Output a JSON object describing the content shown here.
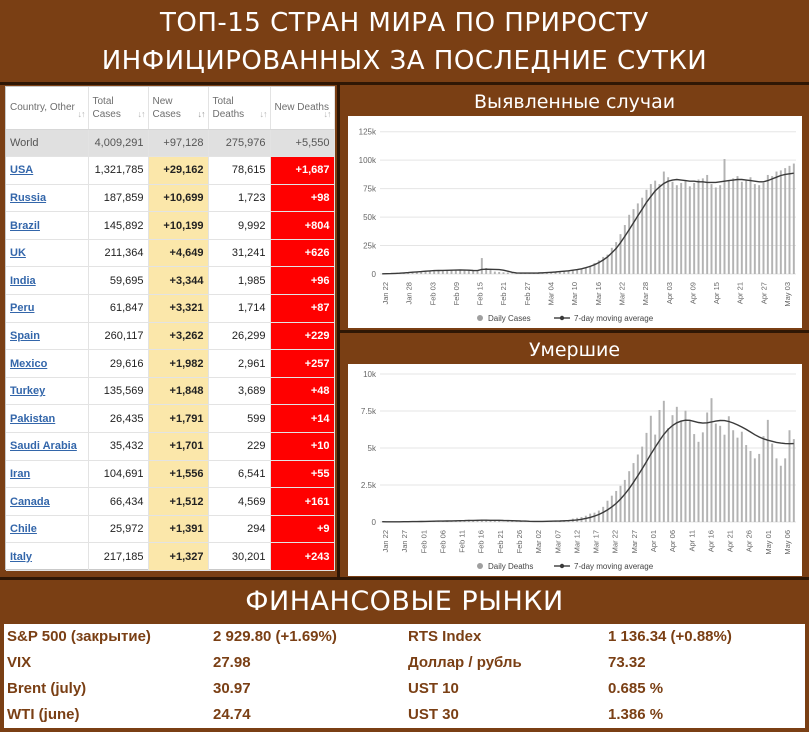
{
  "header": {
    "line1": "ТОП-15 СТРАН МИРА ПО ПРИРОСТУ",
    "line2": "ИНФИЦИРОВАННЫХ ЗА ПОСЛЕДНИЕ СУТКИ"
  },
  "table": {
    "headers": [
      "Country, Other",
      "Total Cases",
      "New Cases",
      "Total Deaths",
      "New Deaths"
    ],
    "world": {
      "country": "World",
      "total_cases": "4,009,291",
      "new_cases": "+97,128",
      "total_deaths": "275,976",
      "new_deaths": "+5,550"
    },
    "rows": [
      {
        "country": "USA",
        "total_cases": "1,321,785",
        "new_cases": "+29,162",
        "total_deaths": "78,615",
        "new_deaths": "+1,687"
      },
      {
        "country": "Russia",
        "total_cases": "187,859",
        "new_cases": "+10,699",
        "total_deaths": "1,723",
        "new_deaths": "+98"
      },
      {
        "country": "Brazil",
        "total_cases": "145,892",
        "new_cases": "+10,199",
        "total_deaths": "9,992",
        "new_deaths": "+804"
      },
      {
        "country": "UK",
        "total_cases": "211,364",
        "new_cases": "+4,649",
        "total_deaths": "31,241",
        "new_deaths": "+626"
      },
      {
        "country": "India",
        "total_cases": "59,695",
        "new_cases": "+3,344",
        "total_deaths": "1,985",
        "new_deaths": "+96"
      },
      {
        "country": "Peru",
        "total_cases": "61,847",
        "new_cases": "+3,321",
        "total_deaths": "1,714",
        "new_deaths": "+87"
      },
      {
        "country": "Spain",
        "total_cases": "260,117",
        "new_cases": "+3,262",
        "total_deaths": "26,299",
        "new_deaths": "+229"
      },
      {
        "country": "Mexico",
        "total_cases": "29,616",
        "new_cases": "+1,982",
        "total_deaths": "2,961",
        "new_deaths": "+257"
      },
      {
        "country": "Turkey",
        "total_cases": "135,569",
        "new_cases": "+1,848",
        "total_deaths": "3,689",
        "new_deaths": "+48"
      },
      {
        "country": "Pakistan",
        "total_cases": "26,435",
        "new_cases": "+1,791",
        "total_deaths": "599",
        "new_deaths": "+14"
      },
      {
        "country": "Saudi Arabia",
        "total_cases": "35,432",
        "new_cases": "+1,701",
        "total_deaths": "229",
        "new_deaths": "+10"
      },
      {
        "country": "Iran",
        "total_cases": "104,691",
        "new_cases": "+1,556",
        "total_deaths": "6,541",
        "new_deaths": "+55"
      },
      {
        "country": "Canada",
        "total_cases": "66,434",
        "new_cases": "+1,512",
        "total_deaths": "4,569",
        "new_deaths": "+161"
      },
      {
        "country": "Chile",
        "total_cases": "25,972",
        "new_cases": "+1,391",
        "total_deaths": "294",
        "new_deaths": "+9"
      },
      {
        "country": "Italy",
        "total_cases": "217,185",
        "new_cases": "+1,327",
        "total_deaths": "30,201",
        "new_deaths": "+243"
      }
    ]
  },
  "chart_data": [
    {
      "type": "bar",
      "title": "Выявленные случаи",
      "ylim": [
        0,
        130000
      ],
      "yticks": [
        0,
        25000,
        50000,
        75000,
        100000,
        125000
      ],
      "ytick_labels": [
        "0",
        "25k",
        "50k",
        "75k",
        "100k",
        "125k"
      ],
      "x_tick_labels": [
        "Jan 22",
        "Jan 28",
        "Feb 03",
        "Feb 09",
        "Feb 15",
        "Feb 21",
        "Feb 27",
        "Mar 04",
        "Mar 10",
        "Mar 16",
        "Mar 22",
        "Mar 28",
        "Apr 03",
        "Apr 09",
        "Apr 15",
        "Apr 21",
        "Apr 27",
        "May 03"
      ],
      "legend": [
        "Daily Cases",
        "7-day moving average"
      ],
      "legend_position": "bottom",
      "series": [
        {
          "name": "Daily Cases",
          "values": [
            100,
            200,
            300,
            500,
            700,
            900,
            1200,
            1500,
            1800,
            2100,
            2400,
            2700,
            3000,
            3100,
            3200,
            3100,
            3400,
            3600,
            3700,
            3300,
            3000,
            2600,
            2500,
            14000,
            5200,
            4200,
            2100,
            1800,
            1500,
            1300,
            600,
            400,
            600,
            900,
            700,
            800,
            900,
            1100,
            1300,
            1800,
            2100,
            2300,
            2600,
            2800,
            3500,
            4000,
            4600,
            5600,
            7300,
            9700,
            12000,
            15000,
            17000,
            23000,
            28000,
            35000,
            43000,
            52000,
            57000,
            62000,
            67000,
            74000,
            79000,
            82000,
            79000,
            90000,
            85000,
            81000,
            78000,
            80000,
            82000,
            77000,
            80000,
            83000,
            84000,
            87000,
            79000,
            76000,
            78000,
            101000,
            82000,
            84000,
            86000,
            81000,
            82000,
            85000,
            79000,
            78000,
            80000,
            87000,
            86000,
            90000,
            91000,
            93000,
            95000,
            97000
          ]
        },
        {
          "name": "7-day moving average",
          "values": [
            150,
            220,
            340,
            520,
            730,
            950,
            1250,
            1550,
            1850,
            2150,
            2450,
            2750,
            2950,
            3100,
            3200,
            3250,
            3350,
            3450,
            3500,
            3450,
            3300,
            3100,
            3000,
            4000,
            4200,
            4100,
            4000,
            3900,
            3300,
            2500,
            1500,
            1000,
            800,
            750,
            760,
            800,
            900,
            1050,
            1250,
            1500,
            1800,
            2100,
            2450,
            2850,
            3300,
            3900,
            4600,
            5500,
            6700,
            8200,
            10000,
            12300,
            15000,
            18500,
            22500,
            27500,
            33000,
            39000,
            45000,
            51000,
            57000,
            63000,
            68000,
            73000,
            76500,
            79500,
            81500,
            82500,
            83000,
            82500,
            82000,
            81500,
            81500,
            81000,
            81000,
            80500,
            80500,
            80500,
            81000,
            81500,
            82000,
            82500,
            83000,
            83000,
            82500,
            82000,
            81500,
            81000,
            81000,
            82000,
            83500,
            85000,
            86500,
            87500,
            88000,
            88500
          ]
        }
      ]
    },
    {
      "type": "bar",
      "title": "Умершие",
      "ylim": [
        0,
        10000
      ],
      "yticks": [
        0,
        2500,
        5000,
        7500,
        10000
      ],
      "ytick_labels": [
        "0",
        "2.5k",
        "5k",
        "7.5k",
        "10k"
      ],
      "x_tick_labels": [
        "Jan 22",
        "Jan 27",
        "Feb 01",
        "Feb 06",
        "Feb 11",
        "Feb 16",
        "Feb 21",
        "Feb 26",
        "Mar 02",
        "Mar 07",
        "Mar 12",
        "Mar 17",
        "Mar 22",
        "Mar 27",
        "Apr 01",
        "Apr 06",
        "Apr 11",
        "Apr 16",
        "Apr 21",
        "Apr 26",
        "May 01",
        "May 06"
      ],
      "legend": [
        "Daily Deaths",
        "7-day moving average"
      ],
      "legend_position": "bottom",
      "series": [
        {
          "name": "Daily Deaths",
          "values": [
            17,
            8,
            16,
            14,
            26,
            26,
            38,
            43,
            46,
            45,
            57,
            64,
            66,
            72,
            73,
            86,
            89,
            97,
            108,
            97,
            146,
            121,
            143,
            142,
            106,
            98,
            139,
            112,
            4,
            111,
            119,
            70,
            52,
            29,
            44,
            29,
            37,
            56,
            65,
            78,
            68,
            90,
            120,
            134,
            226,
            284,
            337,
            424,
            566,
            631,
            773,
            1024,
            1438,
            1778,
            2098,
            2447,
            2844,
            3434,
            3981,
            4561,
            5093,
            6021,
            7178,
            5906,
            7567,
            8189,
            6337,
            7218,
            7782,
            6847,
            7524,
            6895,
            5941,
            5418,
            6057,
            7398,
            8367,
            6651,
            6498,
            5899,
            7145,
            6200,
            5700,
            6100,
            5200,
            4800,
            4300,
            4600,
            5800,
            6900,
            5300,
            4300,
            3800,
            4300,
            6200,
            5600
          ]
        },
        {
          "name": "7-day moving average",
          "values": [
            17,
            13,
            14,
            14,
            16,
            18,
            20,
            25,
            30,
            35,
            40,
            46,
            52,
            58,
            64,
            70,
            76,
            82,
            89,
            96,
            105,
            110,
            118,
            125,
            122,
            118,
            115,
            112,
            100,
            95,
            90,
            80,
            70,
            58,
            50,
            42,
            40,
            42,
            45,
            52,
            58,
            68,
            80,
            95,
            115,
            145,
            185,
            240,
            310,
            400,
            510,
            650,
            820,
            1020,
            1260,
            1550,
            1880,
            2260,
            2680,
            3130,
            3600,
            4080,
            4580,
            5050,
            5500,
            5920,
            6260,
            6520,
            6700,
            6820,
            6880,
            6870,
            6800,
            6720,
            6680,
            6700,
            6760,
            6820,
            6860,
            6850,
            6790,
            6690,
            6560,
            6420,
            6260,
            6080,
            5900,
            5740,
            5620,
            5530,
            5450,
            5380,
            5330,
            5300,
            5290,
            5300
          ]
        }
      ]
    }
  ],
  "finance": {
    "title": "ФИНАНСОВЫЕ РЫНКИ",
    "rows": [
      {
        "left_label": "S&P 500 (закрытие)",
        "left_value": "2 929.80 (+1.69%)",
        "right_label": "RTS Index",
        "right_value": "1 136.34 (+0.88%)"
      },
      {
        "left_label": "VIX",
        "left_value": "27.98",
        "right_label": "Доллар / рубль",
        "right_value": "73.32"
      },
      {
        "left_label": "Brent (july)",
        "left_value": "30.97",
        "right_label": "UST 10",
        "right_value": "0.685 %"
      },
      {
        "left_label": "WTI (june)",
        "left_value": "24.74",
        "right_label": "UST 30",
        "right_value": "1.386 %"
      }
    ]
  },
  "colors": {
    "background": "#7a3f14",
    "new_cases_highlight": "#fbe7aa",
    "new_deaths_highlight": "#ff0000",
    "finance_text": "#7a3f14",
    "bar": "#b3b3b3",
    "line": "#3a3a3a"
  }
}
